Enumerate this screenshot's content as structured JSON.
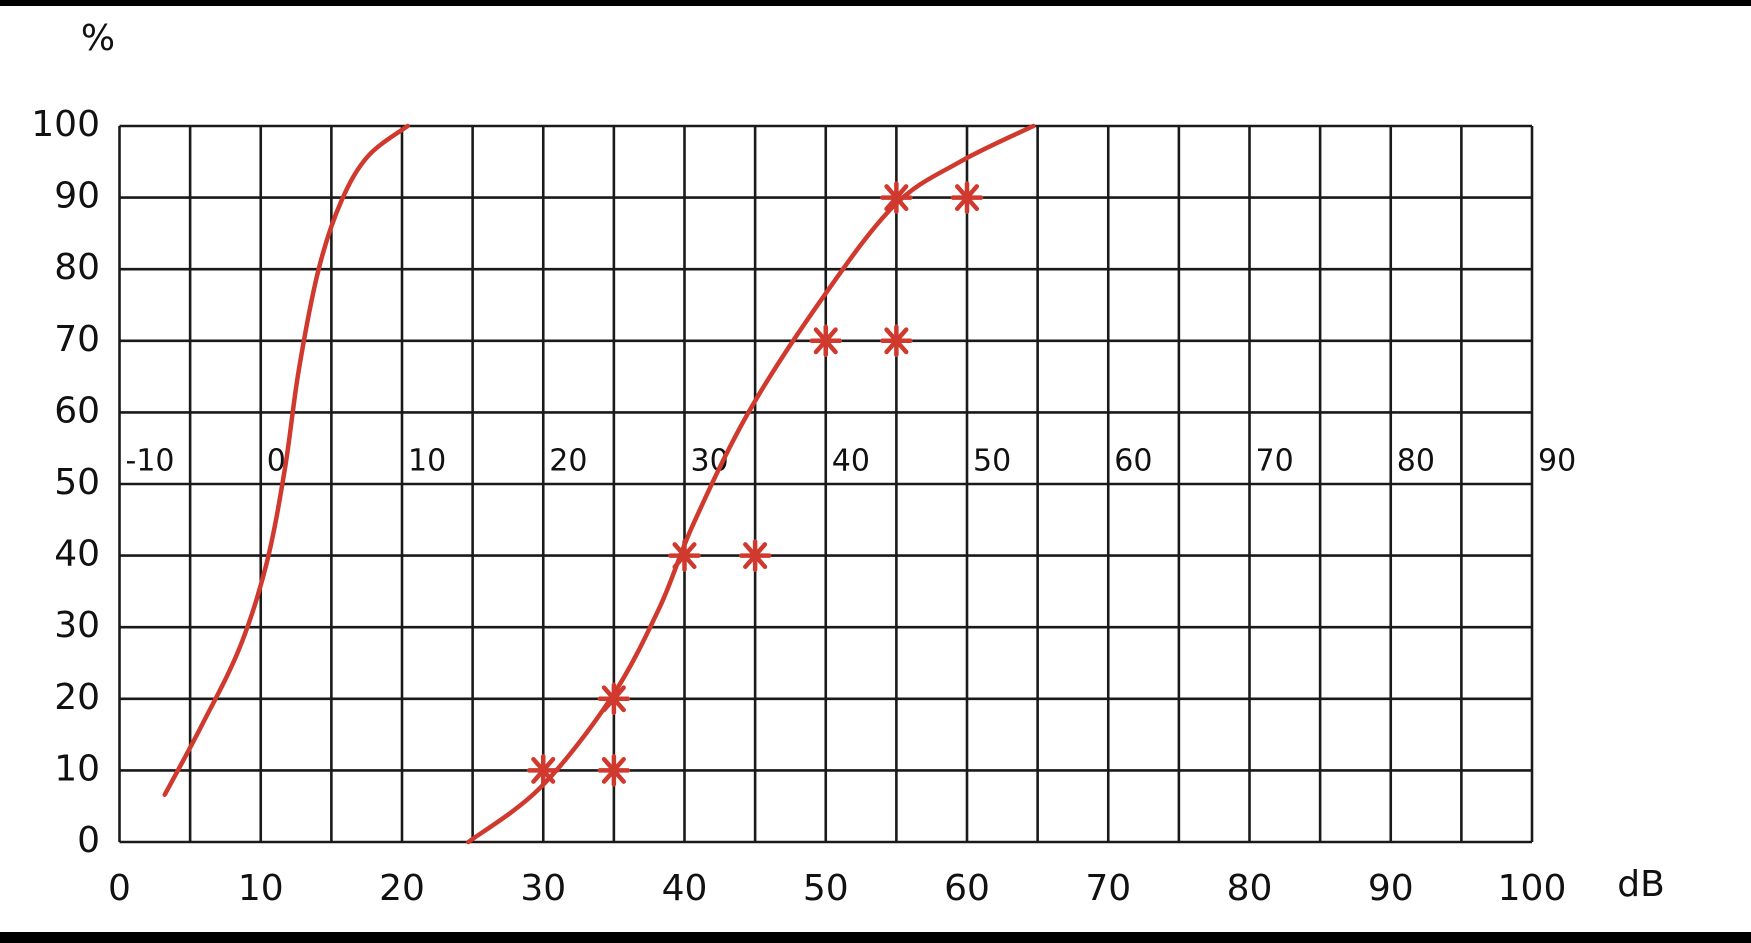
{
  "chart_data": {
    "type": "line",
    "y_label": "%",
    "x_label": "dB",
    "xlim": [
      0,
      100
    ],
    "xticks": [
      0,
      10,
      20,
      30,
      40,
      50,
      60,
      70,
      80,
      90,
      100
    ],
    "x_grid_step": 5,
    "x2lim": [
      -10,
      90
    ],
    "x2ticks": [
      -10,
      0,
      10,
      20,
      30,
      40,
      50,
      60,
      70,
      80,
      90
    ],
    "ylim": [
      0,
      100
    ],
    "yticks": [
      0,
      10,
      20,
      30,
      40,
      50,
      60,
      70,
      80,
      90,
      100
    ],
    "grid": true,
    "series": [
      {
        "type": "line",
        "color": "#d0392e",
        "x": [
          3.2,
          5.8,
          8.5,
          10.4,
          11.7,
          12.7,
          14.1,
          15.7,
          17.6,
          20.4
        ],
        "values": [
          6.6,
          16.2,
          27.1,
          38.8,
          52,
          66,
          80,
          89.5,
          95.8,
          100
        ]
      },
      {
        "type": "line",
        "color": "#d0392e",
        "x": [
          24.7,
          29.8,
          34.8,
          38.2,
          40.6,
          44.5,
          49.6,
          54.8,
          59.5,
          64.7
        ],
        "values": [
          0,
          7.6,
          20.1,
          32.6,
          44.3,
          59.9,
          75.5,
          88.8,
          95,
          100
        ]
      },
      {
        "type": "scatter",
        "marker": "asterisk",
        "color": "#d0392e",
        "x": [
          30,
          35,
          35,
          40,
          45,
          50,
          55,
          55,
          60
        ],
        "values": [
          10,
          10,
          20,
          40,
          40,
          70,
          70,
          90,
          90
        ]
      }
    ]
  }
}
